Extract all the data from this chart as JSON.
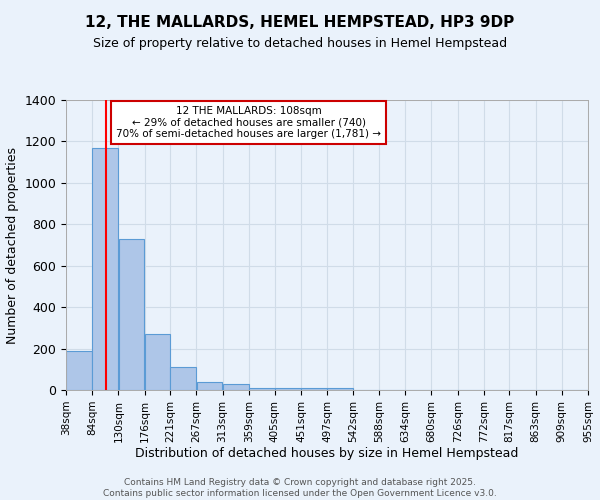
{
  "title": "12, THE MALLARDS, HEMEL HEMPSTEAD, HP3 9DP",
  "subtitle": "Size of property relative to detached houses in Hemel Hempstead",
  "xlabel": "Distribution of detached houses by size in Hemel Hempstead",
  "ylabel": "Number of detached properties",
  "bar_values": [
    190,
    1170,
    730,
    270,
    110,
    38,
    30,
    10,
    10,
    10,
    10,
    0,
    0,
    0,
    0,
    0,
    0,
    0,
    0,
    0
  ],
  "bin_edges": [
    38,
    84,
    130,
    176,
    221,
    267,
    313,
    359,
    405,
    451,
    497,
    542,
    588,
    634,
    680,
    726,
    772,
    817,
    863,
    909,
    955
  ],
  "bin_labels": [
    "38sqm",
    "84sqm",
    "130sqm",
    "176sqm",
    "221sqm",
    "267sqm",
    "313sqm",
    "359sqm",
    "405sqm",
    "451sqm",
    "497sqm",
    "542sqm",
    "588sqm",
    "634sqm",
    "680sqm",
    "726sqm",
    "772sqm",
    "817sqm",
    "863sqm",
    "909sqm",
    "955sqm"
  ],
  "bar_color": "#aec6e8",
  "bar_edge_color": "#5b9bd5",
  "red_line_x": 108,
  "ylim": [
    0,
    1400
  ],
  "yticks": [
    0,
    200,
    400,
    600,
    800,
    1000,
    1200,
    1400
  ],
  "annotation_title": "12 THE MALLARDS: 108sqm",
  "annotation_line1": "← 29% of detached houses are smaller (740)",
  "annotation_line2": "70% of semi-detached houses are larger (1,781) →",
  "annotation_box_color": "#ffffff",
  "annotation_edge_color": "#cc0000",
  "grid_color": "#d0dce8",
  "bg_color": "#eaf2fb",
  "footer_line1": "Contains HM Land Registry data © Crown copyright and database right 2025.",
  "footer_line2": "Contains public sector information licensed under the Open Government Licence v3.0."
}
